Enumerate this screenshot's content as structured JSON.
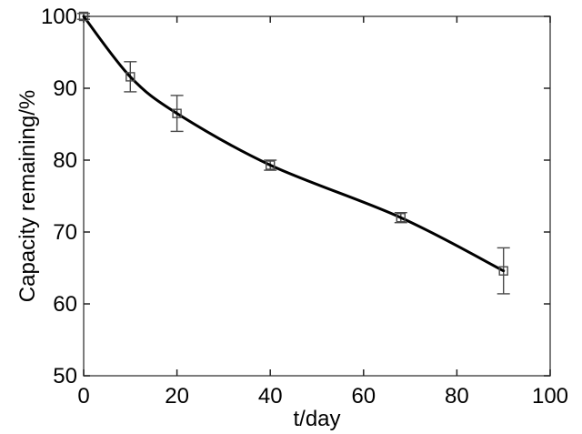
{
  "figure": {
    "background": "#ffffff"
  },
  "chart_data": {
    "type": "line",
    "title": "",
    "xlabel": "t/day",
    "ylabel": "Capacity remaining/%",
    "x": [
      0,
      10,
      20,
      40,
      68,
      90
    ],
    "y": [
      100,
      91.6,
      86.5,
      79.3,
      72.0,
      64.6
    ],
    "y_err": [
      0.4,
      2.1,
      2.5,
      0.7,
      0.7,
      3.2
    ],
    "xlim": [
      0,
      100
    ],
    "ylim": [
      50,
      100
    ],
    "x_ticks": [
      0,
      20,
      40,
      60,
      80,
      100
    ],
    "y_ticks": [
      50,
      60,
      70,
      80,
      90,
      100
    ],
    "grid": false,
    "legend": null,
    "box": true,
    "ticks_inward": true,
    "marker": "open-square",
    "smooth": true,
    "colors": {
      "line": "#000000",
      "marker": "#4a4a4a",
      "errorbar": "#4a4a4a",
      "frame": "#444444",
      "tick": "#222222",
      "text": "#000000",
      "background": "#ffffff"
    }
  }
}
